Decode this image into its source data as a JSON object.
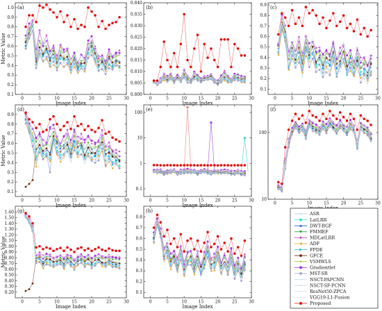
{
  "chart_data": [
    {
      "panel_label": "(a)",
      "type": "line",
      "xlabel": "Image Index",
      "ylabel": "Metric Value",
      "xlim": [
        -2,
        30
      ],
      "ylim": [
        0.1,
        1.05
      ],
      "xticks": [
        0,
        5,
        10,
        15,
        20,
        25,
        30
      ],
      "yticks": [
        0.1,
        0.2,
        0.3,
        0.4,
        0.5,
        0.6,
        0.7,
        0.8,
        0.9,
        1.0
      ],
      "yscale": "linear",
      "proposed": [
        0.8,
        0.92,
        0.92,
        0.85,
        1.02,
        1.0,
        1.03,
        0.98,
        0.95,
        0.9,
        0.96,
        0.85,
        0.92,
        0.8,
        0.88,
        0.78,
        0.82,
        0.8,
        1.0,
        0.96,
        0.92,
        0.8,
        0.86,
        0.78,
        0.82,
        0.84,
        0.85,
        0.9
      ],
      "typical": [
        0.7,
        0.82,
        0.88,
        0.55,
        0.75,
        0.62,
        0.7,
        0.58,
        0.62,
        0.5,
        0.62,
        0.55,
        0.6,
        0.48,
        0.55,
        0.45,
        0.5,
        0.48,
        0.65,
        0.7,
        0.6,
        0.5,
        0.52,
        0.45,
        0.55,
        0.5,
        0.55,
        0.55
      ],
      "low": [
        0.55,
        0.65,
        0.75,
        0.35,
        0.45,
        0.4,
        0.45,
        0.36,
        0.4,
        0.33,
        0.42,
        0.38,
        0.4,
        0.31,
        0.38,
        0.3,
        0.35,
        0.32,
        0.45,
        0.5,
        0.4,
        0.33,
        0.35,
        0.3,
        0.37,
        0.34,
        0.38,
        0.33
      ]
    },
    {
      "panel_label": "(b)",
      "type": "line",
      "xlabel": "Image Index",
      "ylabel": "",
      "xlim": [
        -2,
        30
      ],
      "ylim": [
        0.8,
        0.84
      ],
      "xticks": [
        0,
        5,
        10,
        15,
        20,
        25,
        30
      ],
      "yticks": [
        0.8,
        0.805,
        0.81,
        0.815,
        0.82,
        0.825,
        0.83,
        0.835,
        0.84
      ],
      "yscale": "linear",
      "proposed": [
        0.806,
        0.806,
        0.812,
        0.823,
        0.815,
        0.812,
        0.818,
        0.812,
        0.822,
        0.835,
        0.815,
        0.812,
        0.82,
        0.826,
        0.81,
        0.822,
        0.816,
        0.82,
        0.815,
        0.812,
        0.824,
        0.824,
        0.824,
        0.812,
        0.822,
        0.82,
        0.817,
        0.817
      ],
      "typical": [
        0.806,
        0.805,
        0.807,
        0.809,
        0.808,
        0.809,
        0.807,
        0.809,
        0.807,
        0.811,
        0.808,
        0.807,
        0.81,
        0.809,
        0.807,
        0.808,
        0.808,
        0.809,
        0.807,
        0.806,
        0.808,
        0.81,
        0.808,
        0.807,
        0.809,
        0.809,
        0.808,
        0.808
      ],
      "low": [
        0.805,
        0.804,
        0.805,
        0.806,
        0.805,
        0.806,
        0.805,
        0.806,
        0.805,
        0.807,
        0.805,
        0.805,
        0.806,
        0.806,
        0.805,
        0.806,
        0.806,
        0.806,
        0.805,
        0.804,
        0.805,
        0.806,
        0.805,
        0.805,
        0.806,
        0.806,
        0.805,
        0.805
      ]
    },
    {
      "panel_label": "(c)",
      "type": "line",
      "xlabel": "Image Index",
      "ylabel": "",
      "xlim": [
        -2,
        30
      ],
      "ylim": [
        0.05,
        0.92
      ],
      "xticks": [
        0,
        5,
        10,
        15,
        20,
        25,
        30
      ],
      "yticks": [
        0.1,
        0.2,
        0.3,
        0.4,
        0.5,
        0.6,
        0.7,
        0.8,
        0.9
      ],
      "yscale": "linear",
      "proposed": [
        0.62,
        0.82,
        0.78,
        0.7,
        0.85,
        0.72,
        0.78,
        0.7,
        0.88,
        0.82,
        0.85,
        0.8,
        0.72,
        0.78,
        0.68,
        0.75,
        0.82,
        0.7,
        0.74,
        0.8,
        0.68,
        0.72,
        0.65,
        0.76,
        0.62,
        0.68,
        0.6,
        0.66
      ],
      "typical": [
        0.55,
        0.8,
        0.72,
        0.45,
        0.55,
        0.5,
        0.58,
        0.45,
        0.62,
        0.52,
        0.58,
        0.48,
        0.5,
        0.42,
        0.48,
        0.45,
        0.58,
        0.42,
        0.48,
        0.55,
        0.4,
        0.48,
        0.38,
        0.5,
        0.38,
        0.42,
        0.35,
        0.42
      ],
      "low": [
        0.42,
        0.65,
        0.55,
        0.28,
        0.38,
        0.3,
        0.35,
        0.22,
        0.4,
        0.3,
        0.35,
        0.25,
        0.28,
        0.2,
        0.25,
        0.22,
        0.35,
        0.2,
        0.25,
        0.32,
        0.18,
        0.25,
        0.18,
        0.28,
        0.16,
        0.2,
        0.15,
        0.22
      ]
    },
    {
      "panel_label": "(d)",
      "type": "line",
      "xlabel": "Image Index",
      "ylabel": "Metric Value",
      "xlim": [
        -2,
        30
      ],
      "ylim": [
        0.05,
        1.0
      ],
      "xticks": [
        0,
        5,
        10,
        15,
        20,
        25,
        30
      ],
      "yticks": [
        0.1,
        0.2,
        0.3,
        0.4,
        0.5,
        0.6,
        0.7,
        0.8,
        0.9
      ],
      "yscale": "linear",
      "proposed": [
        0.92,
        0.85,
        0.82,
        0.76,
        0.8,
        0.72,
        0.74,
        0.85,
        0.88,
        0.8,
        0.74,
        0.78,
        0.82,
        0.75,
        0.88,
        0.78,
        0.8,
        0.74,
        0.78,
        0.74,
        0.72,
        0.76,
        0.84,
        0.7,
        0.72,
        0.66,
        0.64,
        0.62
      ],
      "typical": [
        0.9,
        0.8,
        0.75,
        0.68,
        0.7,
        0.62,
        0.64,
        0.74,
        0.78,
        0.7,
        0.64,
        0.66,
        0.72,
        0.63,
        0.76,
        0.66,
        0.68,
        0.62,
        0.66,
        0.62,
        0.6,
        0.64,
        0.72,
        0.58,
        0.6,
        0.54,
        0.52,
        0.5
      ],
      "low": [
        0.8,
        0.7,
        0.55,
        0.35,
        0.5,
        0.4,
        0.42,
        0.3,
        0.55,
        0.45,
        0.4,
        0.42,
        0.48,
        0.4,
        0.52,
        0.42,
        0.45,
        0.38,
        0.45,
        0.4,
        0.38,
        0.42,
        0.5,
        0.36,
        0.4,
        0.33,
        0.35,
        0.32
      ]
    },
    {
      "panel_label": "(e)",
      "type": "line",
      "xlabel": "Image Index",
      "ylabel": "",
      "xlim": [
        -2,
        30
      ],
      "ylim": [
        0.05,
        200
      ],
      "xticks": [
        0,
        5,
        10,
        15,
        20,
        25,
        30
      ],
      "yticks": [
        0.1,
        1,
        10,
        100
      ],
      "yscale": "log",
      "proposed": [
        0.85,
        0.85,
        0.84,
        0.83,
        0.85,
        0.84,
        0.84,
        0.83,
        0.84,
        0.84,
        0.85,
        0.84,
        0.84,
        0.83,
        0.84,
        0.84,
        0.83,
        0.84,
        0.84,
        0.83,
        0.84,
        0.84,
        0.84,
        0.83,
        0.84,
        0.84,
        0.84,
        0.84
      ],
      "typical": [
        0.6,
        0.55,
        0.58,
        0.52,
        0.55,
        0.56,
        0.58,
        0.5,
        0.55,
        0.56,
        0.6,
        0.55,
        0.56,
        0.52,
        0.55,
        0.58,
        0.55,
        0.5,
        0.56,
        0.55,
        0.54,
        0.55,
        0.56,
        0.52,
        0.5,
        0.55,
        0.5,
        0.48
      ],
      "low": [
        0.42,
        0.38,
        0.4,
        0.35,
        0.38,
        0.4,
        0.42,
        0.34,
        0.38,
        0.4,
        0.42,
        0.38,
        0.4,
        0.35,
        0.38,
        0.4,
        0.38,
        0.34,
        0.4,
        0.38,
        0.37,
        0.38,
        0.4,
        0.35,
        0.34,
        0.38,
        0.34,
        0.32
      ],
      "outliers": [
        {
          "x": 11,
          "y": 160,
          "color": "#f08080"
        },
        {
          "x": 18,
          "y": 40,
          "color": "#a050e0"
        },
        {
          "x": 28,
          "y": 10,
          "color": "#40d0d0"
        }
      ]
    },
    {
      "panel_label": "(f)",
      "type": "line",
      "xlabel": "Image Index",
      "ylabel": "",
      "xlim": [
        -2,
        30
      ],
      "ylim": [
        10,
        260
      ],
      "xticks": [
        0,
        5,
        10,
        15,
        20,
        25,
        30
      ],
      "yticks": [
        10,
        100
      ],
      "yscale": "log",
      "proposed": [
        18,
        17,
        60,
        110,
        150,
        190,
        160,
        180,
        140,
        210,
        180,
        170,
        150,
        190,
        160,
        210,
        180,
        160,
        200,
        170,
        150,
        190,
        160,
        110,
        180,
        160,
        150,
        130
      ],
      "typical": [
        16,
        15,
        40,
        85,
        120,
        150,
        130,
        140,
        110,
        160,
        140,
        130,
        120,
        150,
        130,
        160,
        140,
        125,
        150,
        135,
        120,
        150,
        130,
        75,
        145,
        130,
        120,
        100
      ],
      "low": [
        14,
        13,
        28,
        60,
        90,
        110,
        95,
        100,
        80,
        120,
        100,
        95,
        90,
        110,
        95,
        120,
        105,
        90,
        110,
        100,
        90,
        110,
        95,
        55,
        105,
        95,
        90,
        70
      ]
    },
    {
      "panel_label": "(g)",
      "type": "line",
      "xlabel": "Image Index",
      "ylabel": "Metric Value",
      "xlim": [
        -2,
        30
      ],
      "ylim": [
        0.1,
        1.7
      ],
      "xticks": [
        0,
        5,
        10,
        15,
        20,
        25,
        30
      ],
      "yticks": [
        0.2,
        0.3,
        0.4,
        0.5,
        0.6,
        0.7,
        0.8,
        0.9,
        1.0,
        1.1,
        1.2,
        1.3,
        1.4,
        1.5,
        1.6
      ],
      "yscale": "linear",
      "proposed": [
        1.58,
        1.52,
        1.4,
        0.98,
        1.0,
        0.95,
        0.98,
        0.96,
        0.92,
        0.95,
        0.97,
        0.92,
        0.98,
        0.94,
        0.9,
        0.96,
        0.98,
        0.93,
        0.96,
        0.92,
        0.95,
        0.98,
        0.94,
        0.92,
        0.96,
        0.93,
        0.92,
        0.92
      ],
      "typical": [
        1.55,
        1.48,
        1.35,
        0.85,
        0.88,
        0.82,
        0.86,
        0.84,
        0.8,
        0.82,
        0.85,
        0.8,
        0.86,
        0.82,
        0.78,
        0.84,
        0.86,
        0.8,
        0.84,
        0.8,
        0.82,
        0.86,
        0.82,
        0.8,
        0.84,
        0.8,
        0.8,
        0.8
      ],
      "low": [
        1.5,
        1.4,
        1.25,
        0.7,
        0.72,
        0.6,
        0.68,
        0.66,
        0.62,
        0.64,
        0.68,
        0.6,
        0.7,
        0.64,
        0.58,
        0.66,
        0.7,
        0.62,
        0.66,
        0.6,
        0.64,
        0.7,
        0.64,
        0.6,
        0.66,
        0.62,
        0.6,
        0.58
      ]
    },
    {
      "panel_label": "(h)",
      "type": "line",
      "xlabel": "Image Index",
      "ylabel": "",
      "xlim": [
        -2,
        30
      ],
      "ylim": [
        0.05,
        0.9
      ],
      "xticks": [
        0,
        5,
        10,
        15,
        20,
        25,
        30
      ],
      "yticks": [
        0.1,
        0.2,
        0.3,
        0.4,
        0.5,
        0.6,
        0.7,
        0.8
      ],
      "yscale": "linear",
      "proposed": [
        0.7,
        0.82,
        0.75,
        0.62,
        0.68,
        0.55,
        0.6,
        0.52,
        0.64,
        0.48,
        0.58,
        0.6,
        0.5,
        0.58,
        0.48,
        0.56,
        0.66,
        0.52,
        0.55,
        0.62,
        0.5,
        0.56,
        0.48,
        0.6,
        0.46,
        0.52,
        0.44,
        0.58
      ],
      "typical": [
        0.66,
        0.78,
        0.7,
        0.52,
        0.58,
        0.45,
        0.5,
        0.42,
        0.54,
        0.38,
        0.48,
        0.5,
        0.4,
        0.48,
        0.38,
        0.46,
        0.56,
        0.42,
        0.45,
        0.52,
        0.4,
        0.46,
        0.38,
        0.5,
        0.36,
        0.42,
        0.34,
        0.45
      ],
      "low": [
        0.55,
        0.7,
        0.6,
        0.38,
        0.42,
        0.3,
        0.35,
        0.28,
        0.4,
        0.25,
        0.33,
        0.35,
        0.26,
        0.33,
        0.24,
        0.32,
        0.42,
        0.28,
        0.3,
        0.38,
        0.26,
        0.32,
        0.24,
        0.36,
        0.22,
        0.28,
        0.2,
        0.3
      ]
    }
  ],
  "legend": {
    "placement": "bottom-right",
    "entries": [
      {
        "label": "ASR",
        "color": "#a8c8e8",
        "marker": "dot"
      },
      {
        "label": "LatLRR",
        "color": "#40e0d0",
        "marker": "circle"
      },
      {
        "label": "DWT-BGF",
        "color": "#2060d0",
        "marker": "triangle-up"
      },
      {
        "label": "FMMEF",
        "color": "#20a040",
        "marker": "triangle-down"
      },
      {
        "label": "MDLatLRR",
        "color": "#c040c0",
        "marker": "diamond"
      },
      {
        "label": "ADF",
        "color": "#e0a020",
        "marker": "triangle-left"
      },
      {
        "label": "FPDE",
        "color": "#20b0e0",
        "marker": "triangle-right"
      },
      {
        "label": "GFCE",
        "color": "#703010",
        "marker": "hexagon"
      },
      {
        "label": "VSMWLS",
        "color": "#b0c020",
        "marker": "star"
      },
      {
        "label": "Gradientlet",
        "color": "#a030e0",
        "marker": "circle"
      },
      {
        "label": "MST-SR",
        "color": "#a0a0d0",
        "marker": "pentagon"
      },
      {
        "label": "NSCT-PAPCNN",
        "color": "#c0d8f0",
        "marker": "dot"
      },
      {
        "label": "NSCT-SF-PCNN",
        "color": "#c8d8e8",
        "marker": "dot"
      },
      {
        "label": "ResNet50-ZPCA",
        "color": "#d0e0f0",
        "marker": "dot"
      },
      {
        "label": "VGG19-L1-Fusion",
        "color": "#d8e8f8",
        "marker": "dot"
      },
      {
        "label": "Proposed",
        "color": "#e01010",
        "marker": "circle"
      }
    ]
  }
}
